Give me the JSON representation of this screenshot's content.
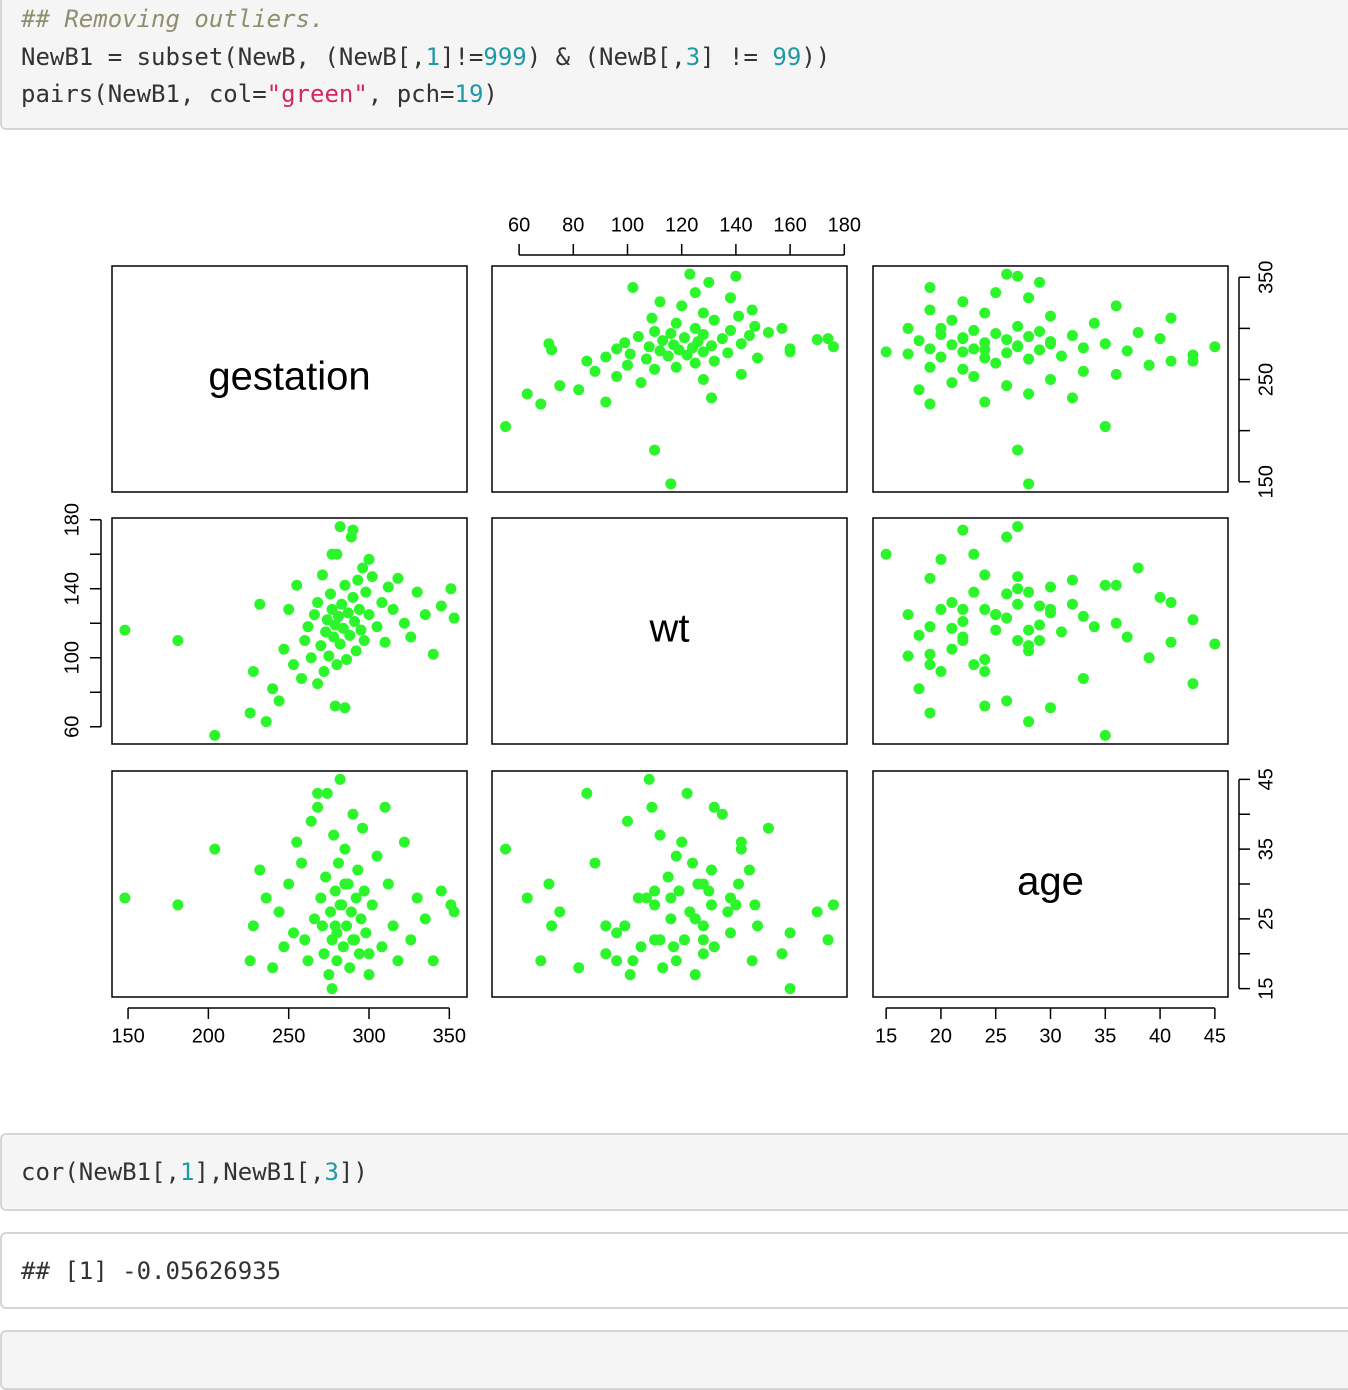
{
  "code_blocks": [
    {
      "lines": [
        [
          {
            "text": "## Removing outliers.",
            "kind": "comment"
          }
        ],
        [
          {
            "text": "NewB1 = subset(NewB, (NewB[,",
            "kind": "plain"
          },
          {
            "text": "1",
            "kind": "number"
          },
          {
            "text": "]!=",
            "kind": "plain"
          },
          {
            "text": "999",
            "kind": "number"
          },
          {
            "text": ") & (NewB[,",
            "kind": "plain"
          },
          {
            "text": "3",
            "kind": "number"
          },
          {
            "text": "] != ",
            "kind": "plain"
          },
          {
            "text": "99",
            "kind": "number"
          },
          {
            "text": "))",
            "kind": "plain"
          }
        ],
        [
          {
            "text": "pairs(NewB1, col=",
            "kind": "plain"
          },
          {
            "text": "\"green\"",
            "kind": "string"
          },
          {
            "text": ", pch=",
            "kind": "plain"
          },
          {
            "text": "19",
            "kind": "number"
          },
          {
            "text": ")",
            "kind": "plain"
          }
        ]
      ]
    },
    {
      "lines": [
        [
          {
            "text": "cor(NewB1[,",
            "kind": "plain"
          },
          {
            "text": "1",
            "kind": "number"
          },
          {
            "text": "],NewB1[,",
            "kind": "plain"
          },
          {
            "text": "3",
            "kind": "number"
          },
          {
            "text": "])",
            "kind": "plain"
          }
        ]
      ]
    }
  ],
  "output": "## [1] -0.05626935",
  "chart_data": {
    "type": "pairs",
    "point_color": "#2cf52c",
    "variables": [
      {
        "name": "gestation",
        "lim": [
          140,
          361
        ],
        "xticks": [
          150,
          200,
          250,
          300,
          350
        ],
        "yticks": [
          150,
          {
            "value": 200
          },
          250,
          {
            "value": 300
          },
          350
        ],
        "values": [
          148,
          181,
          204,
          353,
          351,
          226,
          228,
          232,
          236,
          240,
          244,
          247,
          250,
          253,
          255,
          258,
          260,
          262,
          264,
          266,
          268,
          270,
          271,
          272,
          273,
          274,
          275,
          276,
          277,
          278,
          279,
          280,
          280,
          281,
          282,
          283,
          284,
          285,
          286,
          287,
          288,
          289,
          290,
          291,
          292,
          293,
          294,
          295,
          296,
          297,
          298,
          300,
          302,
          305,
          308,
          312,
          315,
          318,
          322,
          326,
          330,
          335,
          340,
          345,
          282,
          279,
          285,
          268,
          277,
          290,
          310,
          300
        ]
      },
      {
        "name": "wt",
        "lim": [
          50,
          181
        ],
        "xticks": [
          60,
          80,
          100,
          120,
          140,
          160,
          180
        ],
        "yticks": [
          60,
          {
            "value": 80
          },
          100,
          {
            "value": 120
          },
          140,
          {
            "value": 160
          },
          180
        ],
        "values": [
          116,
          110,
          55,
          123,
          140,
          68,
          92,
          131,
          63,
          82,
          75,
          105,
          128,
          96,
          142,
          88,
          110,
          118,
          100,
          125,
          132,
          107,
          148,
          92,
          115,
          122,
          101,
          137,
          128,
          112,
          119,
          160,
          96,
          124,
          108,
          131,
          117,
          142,
          99,
          126,
          113,
          170,
          135,
          121,
          104,
          145,
          128,
          116,
          152,
          110,
          138,
          125,
          147,
          118,
          132,
          141,
          128,
          146,
          120,
          112,
          138,
          125,
          102,
          130,
          176,
          72,
          71,
          85,
          160,
          174,
          109,
          157
        ]
      },
      {
        "name": "age",
        "lim": [
          13.8,
          46.2
        ],
        "xticks": [
          15,
          20,
          25,
          30,
          35,
          40,
          45
        ],
        "yticks": [
          15,
          {
            "value": 20
          },
          25,
          {
            "value": 30
          },
          35,
          {
            "value": 40
          },
          45
        ],
        "values": [
          28,
          27,
          35,
          26,
          27,
          19,
          24,
          32,
          28,
          18,
          26,
          21,
          30,
          23,
          36,
          33,
          22,
          19,
          39,
          25,
          41,
          28,
          24,
          20,
          31,
          43,
          17,
          26,
          22,
          37,
          29,
          23,
          19,
          33,
          45,
          27,
          21,
          35,
          24,
          30,
          18,
          26,
          40,
          22,
          28,
          32,
          20,
          25,
          38,
          29,
          23,
          17,
          27,
          34,
          21,
          30,
          24,
          19,
          36,
          22,
          28,
          25,
          19,
          29,
          27,
          24,
          30,
          43,
          15,
          22,
          41,
          20
        ]
      }
    ]
  }
}
